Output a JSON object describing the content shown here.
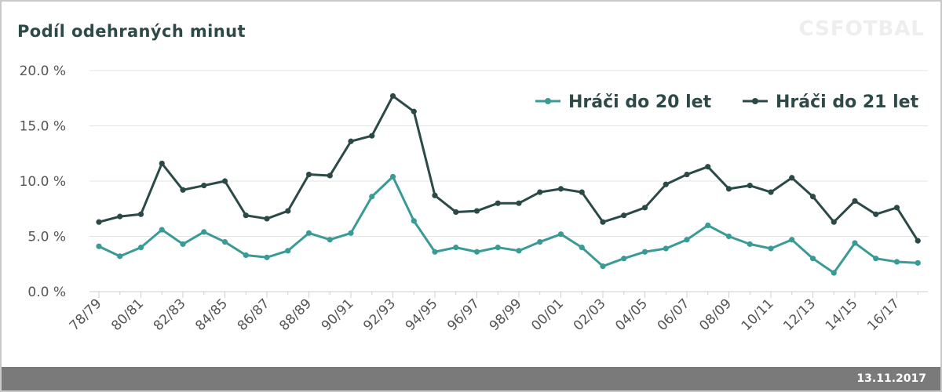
{
  "header": {
    "title": "Podíl odehraných minut",
    "brand": "CSFOTBAL"
  },
  "footer": {
    "date": "13.11.2017"
  },
  "colors": {
    "u20": "#3a9a96",
    "u21": "#2b4a47",
    "grid": "#e3e3e3",
    "footer": "#7a7a7a"
  },
  "chart_data": {
    "type": "line",
    "title": "Podíl odehraných minut",
    "ylim": [
      0,
      20
    ],
    "y_ticks": [
      "0.0 %",
      "5.0 %",
      "10.0 %",
      "15.0 %",
      "20.0 %"
    ],
    "grid": "horizontal",
    "legend_position": "top-right",
    "x": [
      "78/79",
      "79/80",
      "80/81",
      "81/82",
      "82/83",
      "83/84",
      "84/85",
      "85/86",
      "86/87",
      "87/88",
      "88/89",
      "89/90",
      "90/91",
      "91/92",
      "92/93",
      "93/94",
      "94/95",
      "95/96",
      "96/97",
      "97/98",
      "98/99",
      "99/00",
      "00/01",
      "01/02",
      "02/03",
      "03/04",
      "04/05",
      "05/06",
      "06/07",
      "07/08",
      "08/09",
      "09/10",
      "10/11",
      "11/12",
      "12/13",
      "13/14",
      "14/15",
      "15/16",
      "16/17",
      "17/18"
    ],
    "x_tick_labels": [
      "78/79",
      "80/81",
      "82/83",
      "84/85",
      "86/87",
      "88/89",
      "90/91",
      "92/93",
      "94/95",
      "96/97",
      "98/99",
      "00/01",
      "02/03",
      "04/05",
      "06/07",
      "08/09",
      "10/11",
      "12/13",
      "14/15",
      "16/17"
    ],
    "series": [
      {
        "name": "Hráči do 20 let",
        "values": [
          4.1,
          3.2,
          4.0,
          5.6,
          4.3,
          5.4,
          4.5,
          3.3,
          3.1,
          3.7,
          5.3,
          4.7,
          5.3,
          8.6,
          10.4,
          6.4,
          3.6,
          4.0,
          3.6,
          4.0,
          3.7,
          4.5,
          5.2,
          4.0,
          2.3,
          3.0,
          3.6,
          3.9,
          4.7,
          6.0,
          5.0,
          4.3,
          3.9,
          4.7,
          3.0,
          1.7,
          4.4,
          3.0,
          2.7,
          2.6
        ]
      },
      {
        "name": "Hráči do 21 let",
        "values": [
          6.3,
          6.8,
          7.0,
          11.6,
          9.2,
          9.6,
          10.0,
          6.9,
          6.6,
          7.3,
          10.6,
          10.5,
          13.6,
          14.1,
          17.7,
          16.3,
          8.7,
          7.2,
          7.3,
          8.0,
          8.0,
          9.0,
          9.3,
          9.0,
          6.3,
          6.9,
          7.6,
          9.7,
          10.6,
          11.3,
          9.3,
          9.6,
          9.0,
          10.3,
          8.6,
          6.3,
          8.2,
          7.0,
          7.6,
          4.6
        ]
      }
    ]
  }
}
